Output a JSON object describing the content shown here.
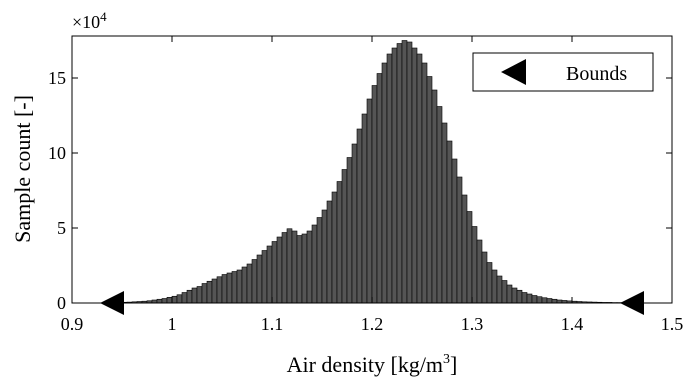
{
  "chart_data": {
    "type": "bar",
    "xlabel_main": "Air density [kg/m",
    "xlabel_sup": "3",
    "xlabel_end": "]",
    "ylabel": "Sample count [-]",
    "exponent_base": "×10",
    "exponent_power": "4",
    "xlim": [
      0.9,
      1.5
    ],
    "ylim": [
      0,
      17.8
    ],
    "xticks": [
      "0.9",
      "1",
      "1.1",
      "1.2",
      "1.3",
      "1.4",
      "1.5"
    ],
    "yticks": [
      "0",
      "5",
      "10",
      "15"
    ],
    "legend": {
      "label": "Bounds",
      "placement": "top-right"
    },
    "bounds": [
      0.94,
      1.46
    ],
    "bar_color": "#555555",
    "bin_width": 0.005,
    "bin_start": 0.94,
    "values": [
      0.05,
      0.05,
      0.05,
      0.06,
      0.08,
      0.1,
      0.12,
      0.15,
      0.2,
      0.25,
      0.3,
      0.38,
      0.45,
      0.55,
      0.7,
      0.85,
      1.0,
      1.1,
      1.3,
      1.45,
      1.6,
      1.75,
      1.9,
      2.0,
      2.1,
      2.2,
      2.4,
      2.6,
      2.9,
      3.2,
      3.5,
      3.8,
      4.1,
      4.4,
      4.7,
      4.95,
      4.8,
      4.5,
      4.6,
      4.8,
      5.2,
      5.7,
      6.2,
      6.8,
      7.4,
      8.1,
      8.9,
      9.7,
      10.6,
      11.6,
      12.6,
      13.6,
      14.5,
      15.3,
      16.0,
      16.6,
      17.0,
      17.3,
      17.5,
      17.4,
      17.0,
      16.6,
      16.0,
      15.1,
      14.2,
      13.1,
      12.0,
      10.8,
      9.6,
      8.4,
      7.2,
      6.1,
      5.1,
      4.2,
      3.4,
      2.7,
      2.2,
      1.8,
      1.5,
      1.2,
      1.0,
      0.85,
      0.7,
      0.6,
      0.5,
      0.42,
      0.35,
      0.3,
      0.25,
      0.2,
      0.17,
      0.14,
      0.12,
      0.1,
      0.08,
      0.07,
      0.06,
      0.05,
      0.04,
      0.04,
      0.03,
      0.03,
      0.03,
      0.02
    ]
  }
}
